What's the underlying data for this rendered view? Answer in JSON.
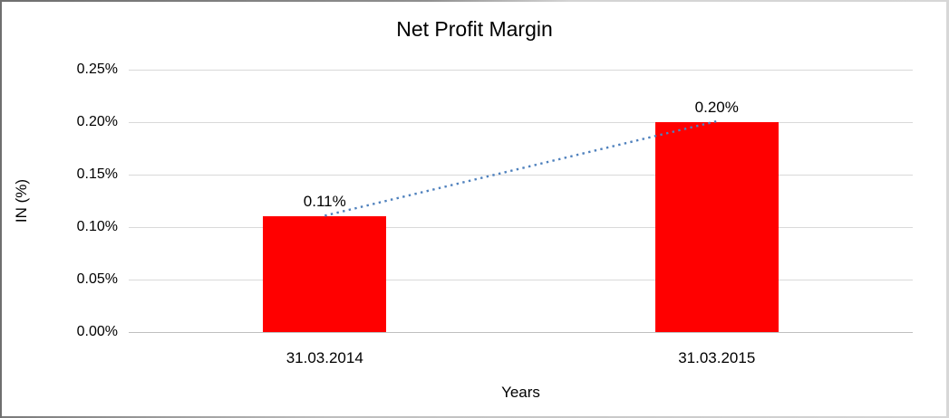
{
  "chart_data": {
    "type": "bar",
    "title": "Net Profit Margin",
    "categories": [
      "31.03.2014",
      "31.03.2015"
    ],
    "values": [
      0.11,
      0.2
    ],
    "data_labels": [
      "0.11%",
      "0.20%"
    ],
    "xlabel": "Years",
    "ylabel": "IN (%)",
    "ylim": [
      0,
      0.25
    ],
    "ytick_step": 0.05,
    "ytick_labels": [
      "0.25%",
      "0.20%",
      "0.15%",
      "0.10%",
      "0.05%",
      "0.00%"
    ],
    "grid": true,
    "legend": "none",
    "bar_color": "#FF0000",
    "trendline_color": "#4F81BD",
    "trendline_style": "dotted",
    "gridline_color": "#D9D9D9",
    "axis_line_color": "#BFBFBF"
  }
}
